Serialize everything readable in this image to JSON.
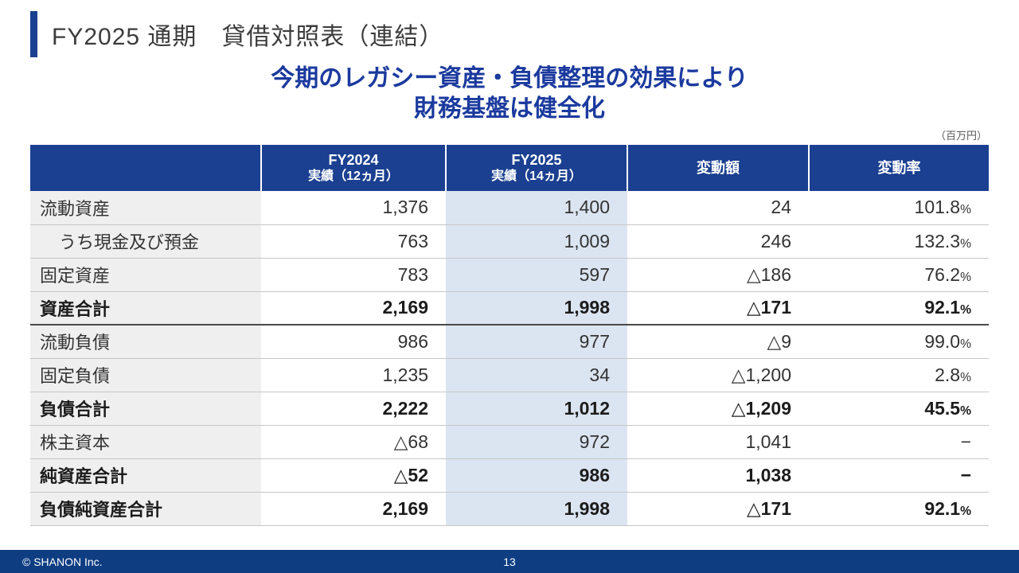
{
  "page": {
    "title": "FY2025 通期　貸借対照表（連結）",
    "subtitle_line1": "今期のレガシー資産・負債整理の効果により",
    "subtitle_line2": "財務基盤は健全化",
    "unit_note": "（百万円）"
  },
  "colors": {
    "header_bg": "#1b4091",
    "fy2025_column_bg": "#dbe5f1",
    "label_column_bg": "#efefef",
    "subtitle_text": "#1b3a9e",
    "footer_bg": "#0e3d82",
    "accent_bar": "#1b4091"
  },
  "table": {
    "headers": [
      {
        "line1": "",
        "line2": ""
      },
      {
        "line1": "FY2024",
        "line2": "実績（12ヵ月）"
      },
      {
        "line1": "FY2025",
        "line2": "実績（14ヵ月）"
      },
      {
        "line1": "変動額",
        "line2": ""
      },
      {
        "line1": "変動率",
        "line2": ""
      }
    ],
    "rows": [
      {
        "label": "流動資産",
        "indent": false,
        "bold": false,
        "separator_after": false,
        "values": [
          "1,376",
          "1,400",
          "24",
          "101.8%"
        ]
      },
      {
        "label": "うち現金及び預金",
        "indent": true,
        "bold": false,
        "separator_after": false,
        "values": [
          "763",
          "1,009",
          "246",
          "132.3%"
        ]
      },
      {
        "label": "固定資産",
        "indent": false,
        "bold": false,
        "separator_after": false,
        "values": [
          "783",
          "597",
          "△186",
          "76.2%"
        ]
      },
      {
        "label": "資産合計",
        "indent": false,
        "bold": true,
        "separator_after": true,
        "values": [
          "2,169",
          "1,998",
          "△171",
          "92.1%"
        ]
      },
      {
        "label": "流動負債",
        "indent": false,
        "bold": false,
        "separator_after": false,
        "values": [
          "986",
          "977",
          "△9",
          "99.0%"
        ]
      },
      {
        "label": "固定負債",
        "indent": false,
        "bold": false,
        "separator_after": false,
        "values": [
          "1,235",
          "34",
          "△1,200",
          "2.8%"
        ]
      },
      {
        "label": "負債合計",
        "indent": false,
        "bold": true,
        "separator_after": false,
        "values": [
          "2,222",
          "1,012",
          "△1,209",
          "45.5%"
        ]
      },
      {
        "label": "株主資本",
        "indent": false,
        "bold": false,
        "separator_after": false,
        "values": [
          "△68",
          "972",
          "1,041",
          "−"
        ]
      },
      {
        "label": "純資産合計",
        "indent": false,
        "bold": true,
        "separator_after": false,
        "values": [
          "△52",
          "986",
          "1,038",
          "−"
        ]
      },
      {
        "label": "負債純資産合計",
        "indent": false,
        "bold": true,
        "separator_after": false,
        "values": [
          "2,169",
          "1,998",
          "△171",
          "92.1%"
        ]
      }
    ]
  },
  "footer": {
    "copyright": "© SHANON Inc.",
    "page_number": "13"
  }
}
